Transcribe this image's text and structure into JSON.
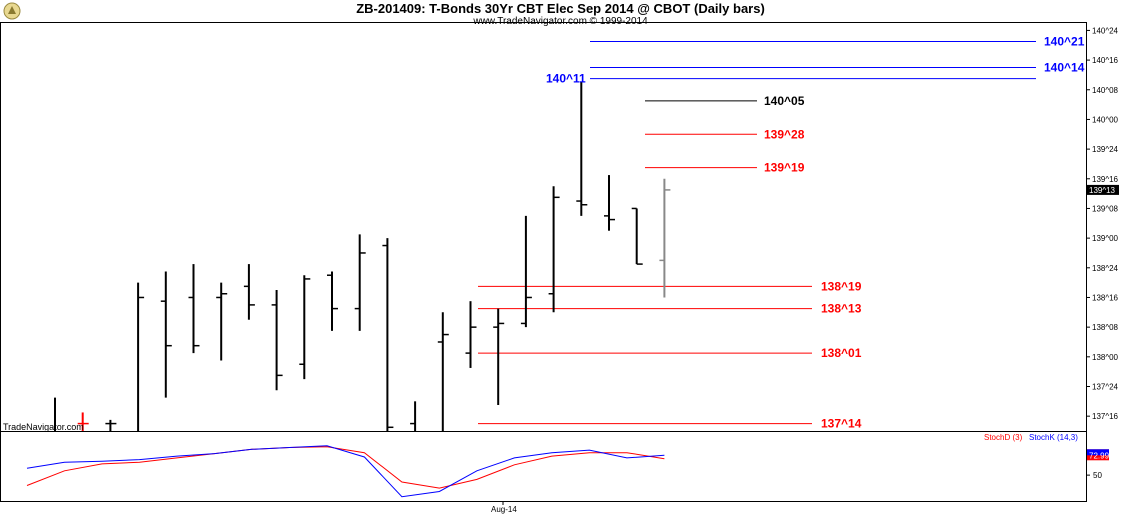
{
  "header": {
    "title": "ZB-201409:  T-Bonds 30Yr CBT Elec Sep 2014 @ CBOT  (Daily bars)",
    "copyright": "www.TradeNavigator.com © 1999-2014"
  },
  "watermark": "TradeNavigator.com",
  "x_axis": {
    "date_label": "Aug-14"
  },
  "colors": {
    "blue": "#0000ff",
    "red": "#ff0000",
    "black": "#000000",
    "grey": "#888888"
  },
  "chart_data": [
    {
      "type": "bar",
      "subtype": "ohlc-price-bars",
      "y_unit": "price in 32nds",
      "ylim": [
        "137^12",
        "140^26"
      ],
      "y_ticks": [
        "137^16",
        "137^24",
        "138^00",
        "138^08",
        "138^16",
        "138^24",
        "139^00",
        "139^08",
        "139^16",
        "139^24",
        "140^00",
        "140^08",
        "140^16",
        "140^24"
      ],
      "last_price": "139^13",
      "bars": [
        {
          "h": "137^21",
          "l": "137^12",
          "o": null,
          "c": null,
          "color": "black"
        },
        {
          "h": "137^17",
          "l": "137^12",
          "o": "137^14",
          "c": "137^14",
          "color": "red"
        },
        {
          "h": "137^15",
          "l": "137^12",
          "o": "137^14",
          "c": "137^14",
          "color": "black"
        },
        {
          "h": "138^20",
          "l": "137^12",
          "o": null,
          "c": "138^16",
          "color": "black"
        },
        {
          "h": "138^23",
          "l": "137^21",
          "o": "138^15",
          "c": "138^03",
          "color": "black"
        },
        {
          "h": "138^25",
          "l": "138^01",
          "o": "138^16",
          "c": "138^03",
          "color": "black"
        },
        {
          "h": "138^20",
          "l": "137^31",
          "o": "138^16",
          "c": "138^17",
          "color": "black"
        },
        {
          "h": "138^25",
          "l": "138^10",
          "o": "138^19",
          "c": "138^14",
          "color": "black"
        },
        {
          "h": "138^18",
          "l": "137^23",
          "o": "138^14",
          "c": "137^27",
          "color": "black"
        },
        {
          "h": "138^22",
          "l": "137^26",
          "o": "137^30",
          "c": "138^21",
          "color": "black"
        },
        {
          "h": "138^23",
          "l": "138^07",
          "o": "138^22",
          "c": "138^13",
          "color": "black"
        },
        {
          "h": "139^01",
          "l": "138^07",
          "o": "138^13",
          "c": "138^28",
          "color": "black"
        },
        {
          "h": "139^00",
          "l": "137^12",
          "o": "138^30",
          "c": "137^13",
          "color": "black"
        },
        {
          "h": "137^20",
          "l": "137^12",
          "o": "137^14",
          "c": null,
          "color": "black"
        },
        {
          "h": "138^12",
          "l": "137^12",
          "o": "138^04",
          "c": "138^06",
          "color": "black"
        },
        {
          "h": "138^15",
          "l": "137^29",
          "o": "138^01",
          "c": "138^08",
          "color": "black"
        },
        {
          "h": "138^13",
          "l": "137^19",
          "o": "138^08",
          "c": "138^09",
          "color": "black"
        },
        {
          "h": "139^06",
          "l": "138^08",
          "o": "138^09",
          "c": "138^16",
          "color": "black"
        },
        {
          "h": "139^14",
          "l": "138^12",
          "o": "138^17",
          "c": "139^11",
          "color": "black"
        },
        {
          "h": "140^10",
          "l": "139^06",
          "o": "139^10",
          "c": "139^09",
          "color": "black"
        },
        {
          "h": "139^17",
          "l": "139^02",
          "o": "139^06",
          "c": "139^05",
          "color": "black"
        },
        {
          "h": "139^08",
          "l": "138^25",
          "o": "139^08",
          "c": "138^25",
          "color": "black"
        },
        {
          "h": "139^16",
          "l": "138^16",
          "o": "138^26",
          "c": "139^13",
          "color": "grey"
        }
      ],
      "levels": [
        {
          "label": "140^21",
          "value": "140^21",
          "color": "blue"
        },
        {
          "label": "140^14",
          "value": "140^14",
          "color": "blue"
        },
        {
          "label": "140^11",
          "value": "140^11",
          "color": "blue"
        },
        {
          "label": "140^05",
          "value": "140^05",
          "color": "black"
        },
        {
          "label": "139^28",
          "value": "139^28",
          "color": "red"
        },
        {
          "label": "139^19",
          "value": "139^19",
          "color": "red"
        },
        {
          "label": "138^19",
          "value": "138^19",
          "color": "red"
        },
        {
          "label": "138^13",
          "value": "138^13",
          "color": "red"
        },
        {
          "label": "138^01",
          "value": "138^01",
          "color": "red"
        },
        {
          "label": "137^14",
          "value": "137^14",
          "color": "red"
        }
      ]
    },
    {
      "type": "line",
      "ylim": [
        20,
        100
      ],
      "y_ticks": [
        50
      ],
      "last_value_label": "72.99",
      "series": [
        {
          "name": "StochD (3)",
          "color": "red",
          "values": [
            38,
            55,
            63,
            65,
            70,
            75,
            80,
            82,
            83,
            76,
            42,
            35,
            45,
            62,
            72,
            76,
            76,
            69
          ]
        },
        {
          "name": "StochK (14,3)",
          "color": "blue",
          "values": [
            58,
            65,
            66,
            68,
            72,
            75,
            80,
            82,
            84,
            71,
            25,
            31,
            55,
            70,
            76,
            79,
            70,
            72.99
          ]
        }
      ]
    }
  ]
}
